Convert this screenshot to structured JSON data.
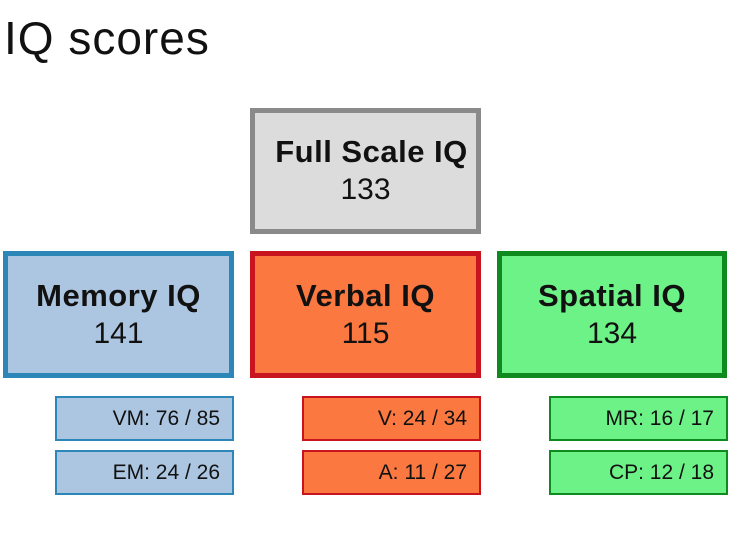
{
  "title": "IQ scores",
  "full_scale": {
    "label": "Full Scale IQ",
    "score": "133"
  },
  "memory": {
    "label": "Memory IQ",
    "score": "141",
    "subtests": [
      "VM: 76 / 85",
      "EM: 24 / 26"
    ]
  },
  "verbal": {
    "label": "Verbal IQ",
    "score": "115",
    "subtests": [
      "V: 24 / 34",
      "A: 11 / 27"
    ]
  },
  "spatial": {
    "label": "Spatial IQ",
    "score": "134",
    "subtests": [
      "MR: 16 / 17",
      "CP: 12 / 18"
    ]
  },
  "colors": {
    "full_fill": "#dcdcdc",
    "full_border": "#8a8a8a",
    "memory_fill": "#acc5e1",
    "memory_border": "#2d86b8",
    "verbal_fill": "#fb7840",
    "verbal_border": "#c8141e",
    "spatial_fill": "#6df288",
    "spatial_border": "#0f8a1e"
  }
}
